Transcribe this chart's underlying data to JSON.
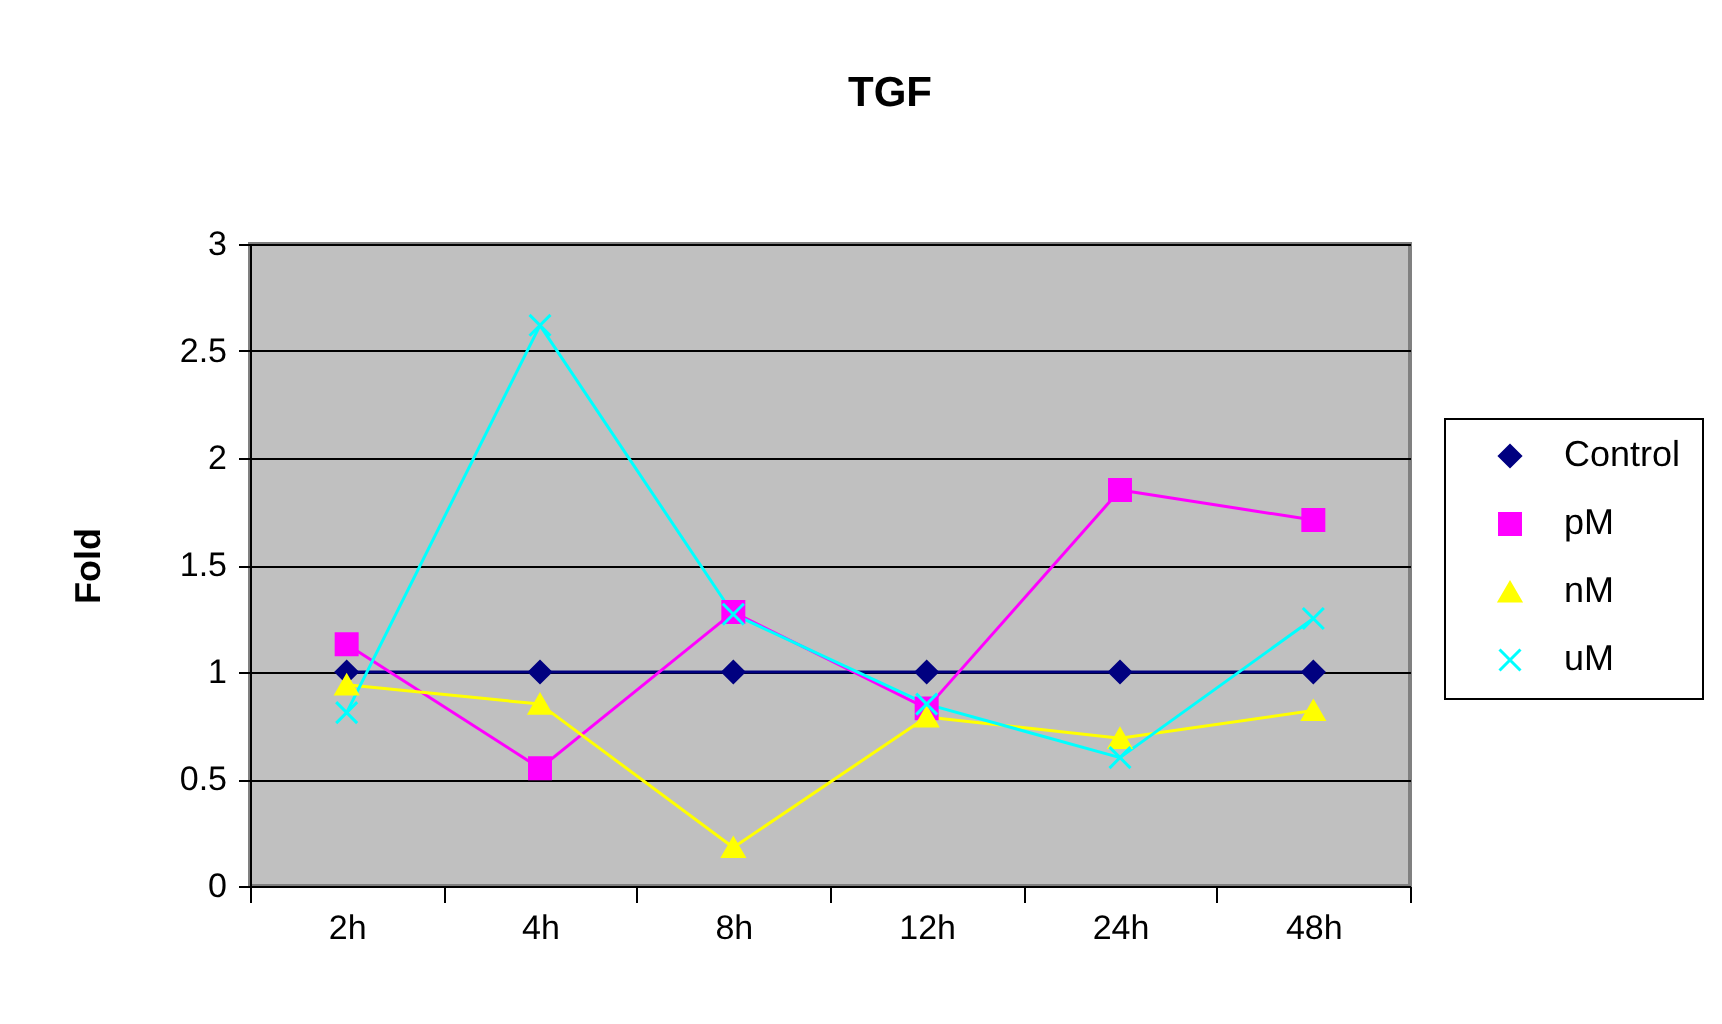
{
  "chart_data": {
    "type": "line",
    "title": "TGF",
    "ylabel": "Fold",
    "categories": [
      "2h",
      "4h",
      "8h",
      "12h",
      "24h",
      "48h"
    ],
    "ylim": [
      0,
      3
    ],
    "yticks": [
      0,
      0.5,
      1,
      1.5,
      2,
      2.5,
      3
    ],
    "grid": "y",
    "legend": "right",
    "series": [
      {
        "name": "Control",
        "color": "#000080",
        "marker": "diamond",
        "values": [
          1,
          1,
          1,
          1,
          1,
          1
        ]
      },
      {
        "name": "pM",
        "color": "#ff00ff",
        "marker": "square",
        "values": [
          1.13,
          0.55,
          1.28,
          0.83,
          1.85,
          1.71
        ]
      },
      {
        "name": "nM",
        "color": "#ffff00",
        "marker": "triangle",
        "values": [
          0.94,
          0.85,
          0.18,
          0.79,
          0.69,
          0.82
        ]
      },
      {
        "name": "uM",
        "color": "#00ffff",
        "marker": "cross",
        "values": [
          0.81,
          2.62,
          1.27,
          0.85,
          0.6,
          1.25
        ]
      }
    ]
  }
}
